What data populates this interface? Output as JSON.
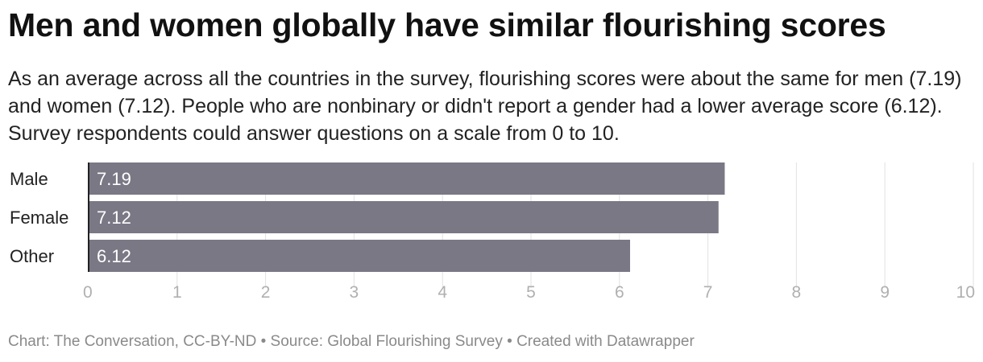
{
  "title": "Men and women globally have similar flourishing scores",
  "description": "As an average across all the countries in the survey, flourishing scores were about the same for men (7.19) and women (7.12). People who are nonbinary or didn't report a gender had a lower average score (6.12). Survey respondents could answer questions on a scale from 0 to 10.",
  "footer": "Chart: The Conversation, CC-BY-ND • Source: Global Flourishing Survey • Created with Datawrapper",
  "colors": {
    "bar": "#7a7885",
    "grid": "#e2e2e2",
    "axis_line": "#222222",
    "tick_label": "#b0b0b0",
    "value_label": "#ffffff"
  },
  "chart_data": {
    "type": "bar",
    "orientation": "horizontal",
    "categories": [
      "Male",
      "Female",
      "Other"
    ],
    "values": [
      7.19,
      7.12,
      6.12
    ],
    "value_labels": [
      "7.19",
      "7.12",
      "6.12"
    ],
    "xlim": [
      0,
      10
    ],
    "x_ticks": [
      0,
      1,
      2,
      3,
      4,
      5,
      6,
      7,
      8,
      9,
      10
    ],
    "grid": true,
    "legend": "none"
  }
}
